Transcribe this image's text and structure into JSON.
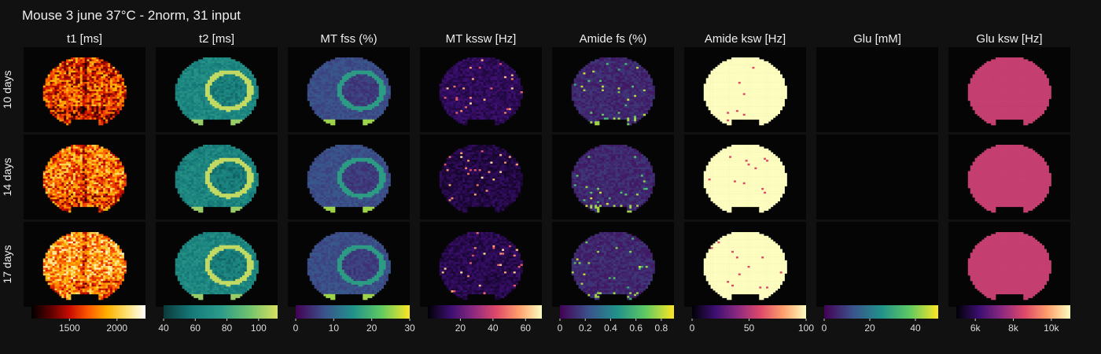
{
  "figure_title": "Mouse 3 june 37°C - 2norm, 31 input",
  "chart_data": {
    "type": "heatmap",
    "rows": [
      "10 days",
      "14 days",
      "17 days"
    ],
    "columns": [
      {
        "title": "t1 [ms]",
        "colormap": "hot",
        "stops": [
          "#000000",
          "#5a0000",
          "#c80c00",
          "#ff5a00",
          "#ffb000",
          "#ffe070",
          "#ffffff"
        ],
        "range": [
          1100,
          2300
        ],
        "ticks": [
          {
            "v": 1500,
            "label": "1500"
          },
          {
            "v": 2000,
            "label": "2000"
          }
        ],
        "base": [
          0.45,
          0.55,
          0.65
        ],
        "spread": 0.28,
        "pattern": "t1"
      },
      {
        "title": "t2 [ms]",
        "colormap": "viridis-light",
        "stops": [
          "#0c3a3a",
          "#167a7a",
          "#2a9a8a",
          "#6fc26e",
          "#d8e060"
        ],
        "range": [
          40,
          112
        ],
        "ticks": [
          {
            "v": 40,
            "label": "40"
          },
          {
            "v": 60,
            "label": "60"
          },
          {
            "v": 80,
            "label": "80"
          },
          {
            "v": 100,
            "label": "100"
          }
        ],
        "base": [
          0.35,
          0.33,
          0.34
        ],
        "spread": 0.12,
        "pattern": "lesion"
      },
      {
        "title": "MT fss (%)",
        "colormap": "viridis",
        "stops": [
          "#440154",
          "#3b528b",
          "#21918c",
          "#5ec962",
          "#fde725"
        ],
        "range": [
          0,
          30
        ],
        "ticks": [
          {
            "v": 0,
            "label": "0"
          },
          {
            "v": 10,
            "label": "10"
          },
          {
            "v": 20,
            "label": "20"
          },
          {
            "v": 30,
            "label": "30"
          }
        ],
        "base": [
          0.24,
          0.24,
          0.24
        ],
        "spread": 0.05,
        "pattern": "lesion-dark"
      },
      {
        "title": "MT kssw [Hz]",
        "colormap": "magma",
        "stops": [
          "#000004",
          "#3b0f70",
          "#8c2981",
          "#de4968",
          "#fe9f6d",
          "#fcfdbf"
        ],
        "range": [
          0,
          70
        ],
        "ticks": [
          {
            "v": 20,
            "label": "20"
          },
          {
            "v": 40,
            "label": "40"
          },
          {
            "v": 60,
            "label": "60"
          }
        ],
        "base": [
          0.16,
          0.12,
          0.14
        ],
        "spread": 0.06,
        "pattern": "speckle"
      },
      {
        "title": "Amide fs (%)",
        "colormap": "viridis",
        "stops": [
          "#440154",
          "#3b528b",
          "#21918c",
          "#5ec962",
          "#fde725"
        ],
        "range": [
          0,
          0.9
        ],
        "ticks": [
          {
            "v": 0,
            "label": "0"
          },
          {
            "v": 0.2,
            "label": "0.2"
          },
          {
            "v": 0.4,
            "label": "0.4"
          },
          {
            "v": 0.6,
            "label": "0.6"
          },
          {
            "v": 0.8,
            "label": "0.8"
          }
        ],
        "base": [
          0.12,
          0.12,
          0.12
        ],
        "spread": 0.06,
        "pattern": "speckle-bright"
      },
      {
        "title": "Amide ksw [Hz]",
        "colormap": "magma",
        "stops": [
          "#000004",
          "#3b0f70",
          "#8c2981",
          "#de4968",
          "#fe9f6d",
          "#fcfdbf"
        ],
        "range": [
          0,
          100
        ],
        "ticks": [
          {
            "v": 0,
            "label": "0"
          },
          {
            "v": 50,
            "label": "50"
          },
          {
            "v": 100,
            "label": "100"
          }
        ],
        "base": [
          1.0,
          1.0,
          1.0
        ],
        "spread": 0.0,
        "pattern": "uniform-hot"
      },
      {
        "title": "Glu [mM]",
        "colormap": "viridis",
        "stops": [
          "#440154",
          "#3b528b",
          "#21918c",
          "#5ec962",
          "#fde725"
        ],
        "range": [
          0,
          50
        ],
        "ticks": [
          {
            "v": 0,
            "label": "0"
          },
          {
            "v": 20,
            "label": "20"
          },
          {
            "v": 40,
            "label": "40"
          }
        ],
        "base": [
          0.0,
          0.0,
          0.0
        ],
        "spread": 0.0,
        "pattern": "blank"
      },
      {
        "title": "Glu ksw [Hz]",
        "colormap": "magma",
        "stops": [
          "#000004",
          "#3b0f70",
          "#8c2981",
          "#de4968",
          "#fe9f6d",
          "#fcfdbf"
        ],
        "range": [
          5000,
          11000
        ],
        "ticks": [
          {
            "v": 6000,
            "label": "6k"
          },
          {
            "v": 8000,
            "label": "8k"
          },
          {
            "v": 10000,
            "label": "10k"
          }
        ],
        "base": [
          0.54,
          0.54,
          0.54
        ],
        "spread": 0.0,
        "pattern": "uniform"
      }
    ]
  }
}
